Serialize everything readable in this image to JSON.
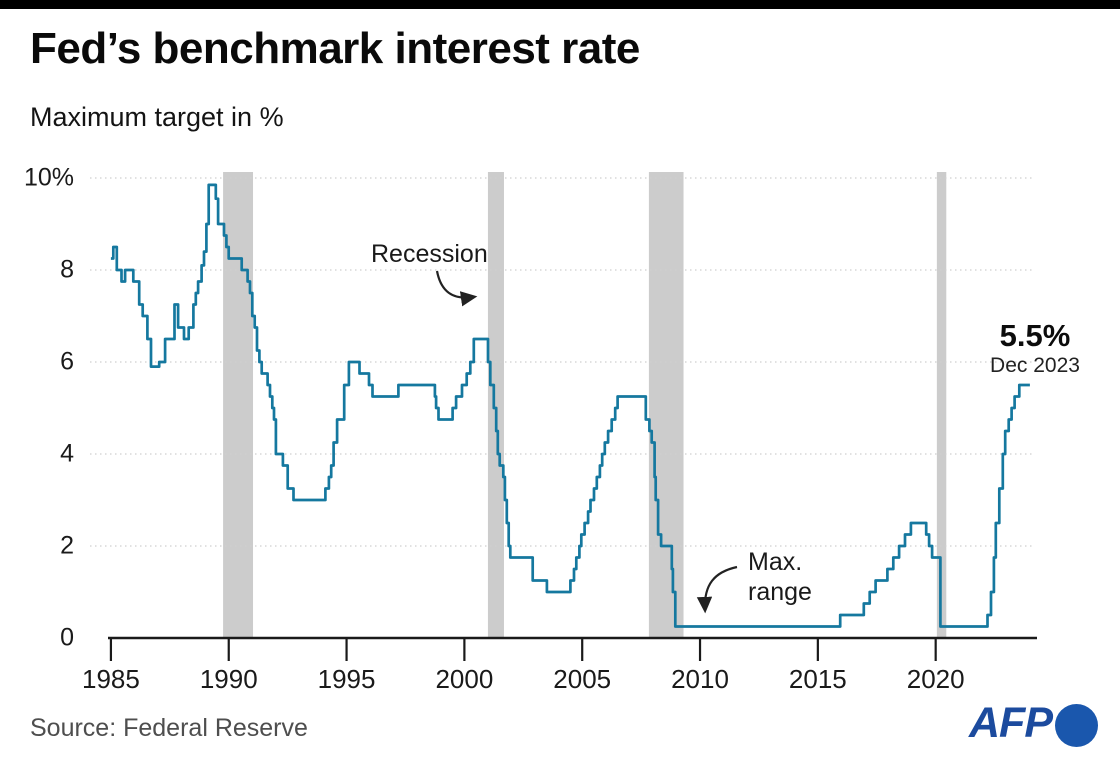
{
  "topbar_color": "#000000",
  "header": {
    "title": "Fed’s benchmark interest rate",
    "subtitle": "Maximum target in %"
  },
  "chart_data": {
    "type": "line",
    "step": true,
    "title": "Fed’s benchmark interest rate",
    "ylabel": "Maximum target in %",
    "xlabel": "",
    "x_domain": [
      1983.9,
      2024.3
    ],
    "y_domain": [
      0,
      10
    ],
    "grid": "dotted horizontal",
    "legend": "none",
    "line_color": "#15789f",
    "band_color": "#cccccc",
    "grid_color": "#cfcfcf",
    "axis_color": "#1a1a1a",
    "y_ticks": [
      {
        "value": 10,
        "label": "10%"
      },
      {
        "value": 8,
        "label": "8"
      },
      {
        "value": 6,
        "label": "6"
      },
      {
        "value": 4,
        "label": "4"
      },
      {
        "value": 2,
        "label": "2"
      },
      {
        "value": 0,
        "label": "0"
      }
    ],
    "x_ticks": [
      {
        "value": 1985,
        "label": "1985"
      },
      {
        "value": 1990,
        "label": "1990"
      },
      {
        "value": 1995,
        "label": "1995"
      },
      {
        "value": 2000,
        "label": "2000"
      },
      {
        "value": 2005,
        "label": "2005"
      },
      {
        "value": 2010,
        "label": "2010"
      },
      {
        "value": 2015,
        "label": "2015"
      },
      {
        "value": 2020,
        "label": "2020"
      }
    ],
    "recession_bands": [
      [
        1989.76,
        1991.03
      ],
      [
        2001.0,
        2001.68
      ],
      [
        2007.83,
        2009.3
      ],
      [
        2020.05,
        2020.45
      ]
    ],
    "series": [
      {
        "name": "Fed benchmark rate (maximum target, %)",
        "end_year": 2024.0,
        "points": [
          [
            1985.0,
            8.25
          ],
          [
            1985.1,
            8.5
          ],
          [
            1985.25,
            8.0
          ],
          [
            1985.45,
            7.75
          ],
          [
            1985.6,
            8.0
          ],
          [
            1985.95,
            7.75
          ],
          [
            1986.2,
            7.25
          ],
          [
            1986.35,
            7.0
          ],
          [
            1986.55,
            6.5
          ],
          [
            1986.7,
            5.9
          ],
          [
            1987.05,
            6.0
          ],
          [
            1987.3,
            6.5
          ],
          [
            1987.7,
            7.25
          ],
          [
            1987.85,
            6.75
          ],
          [
            1988.1,
            6.5
          ],
          [
            1988.3,
            6.75
          ],
          [
            1988.5,
            7.25
          ],
          [
            1988.6,
            7.5
          ],
          [
            1988.7,
            7.75
          ],
          [
            1988.85,
            8.1
          ],
          [
            1988.95,
            8.4
          ],
          [
            1989.05,
            9.0
          ],
          [
            1989.15,
            9.85
          ],
          [
            1989.45,
            9.55
          ],
          [
            1989.55,
            9.0
          ],
          [
            1989.8,
            8.75
          ],
          [
            1989.9,
            8.5
          ],
          [
            1990.0,
            8.25
          ],
          [
            1990.55,
            8.0
          ],
          [
            1990.8,
            7.75
          ],
          [
            1990.9,
            7.5
          ],
          [
            1991.0,
            7.0
          ],
          [
            1991.1,
            6.75
          ],
          [
            1991.2,
            6.25
          ],
          [
            1991.3,
            6.0
          ],
          [
            1991.4,
            5.75
          ],
          [
            1991.65,
            5.5
          ],
          [
            1991.75,
            5.25
          ],
          [
            1991.85,
            5.0
          ],
          [
            1991.92,
            4.75
          ],
          [
            1992.0,
            4.0
          ],
          [
            1992.3,
            3.75
          ],
          [
            1992.5,
            3.25
          ],
          [
            1992.75,
            3.0
          ],
          [
            1994.1,
            3.25
          ],
          [
            1994.25,
            3.5
          ],
          [
            1994.35,
            3.75
          ],
          [
            1994.45,
            4.25
          ],
          [
            1994.6,
            4.75
          ],
          [
            1994.9,
            5.5
          ],
          [
            1995.1,
            6.0
          ],
          [
            1995.55,
            5.75
          ],
          [
            1995.95,
            5.5
          ],
          [
            1996.1,
            5.25
          ],
          [
            1997.2,
            5.5
          ],
          [
            1998.75,
            5.25
          ],
          [
            1998.8,
            5.0
          ],
          [
            1998.9,
            4.75
          ],
          [
            1999.5,
            5.0
          ],
          [
            1999.65,
            5.25
          ],
          [
            1999.9,
            5.5
          ],
          [
            2000.1,
            5.75
          ],
          [
            2000.25,
            6.0
          ],
          [
            2000.4,
            6.5
          ],
          [
            2001.0,
            6.0
          ],
          [
            2001.1,
            5.5
          ],
          [
            2001.25,
            5.0
          ],
          [
            2001.35,
            4.5
          ],
          [
            2001.42,
            4.0
          ],
          [
            2001.5,
            3.75
          ],
          [
            2001.65,
            3.5
          ],
          [
            2001.72,
            3.0
          ],
          [
            2001.8,
            2.5
          ],
          [
            2001.88,
            2.0
          ],
          [
            2001.95,
            1.75
          ],
          [
            2002.9,
            1.25
          ],
          [
            2003.5,
            1.0
          ],
          [
            2004.5,
            1.25
          ],
          [
            2004.65,
            1.5
          ],
          [
            2004.75,
            1.75
          ],
          [
            2004.88,
            2.0
          ],
          [
            2004.96,
            2.25
          ],
          [
            2005.1,
            2.5
          ],
          [
            2005.25,
            2.75
          ],
          [
            2005.35,
            3.0
          ],
          [
            2005.5,
            3.25
          ],
          [
            2005.62,
            3.5
          ],
          [
            2005.75,
            3.75
          ],
          [
            2005.85,
            4.0
          ],
          [
            2005.96,
            4.25
          ],
          [
            2006.1,
            4.5
          ],
          [
            2006.25,
            4.75
          ],
          [
            2006.4,
            5.0
          ],
          [
            2006.5,
            5.25
          ],
          [
            2007.7,
            4.75
          ],
          [
            2007.85,
            4.5
          ],
          [
            2007.95,
            4.25
          ],
          [
            2008.07,
            3.5
          ],
          [
            2008.12,
            3.0
          ],
          [
            2008.22,
            2.25
          ],
          [
            2008.35,
            2.0
          ],
          [
            2008.8,
            1.5
          ],
          [
            2008.85,
            1.0
          ],
          [
            2008.95,
            0.25
          ],
          [
            2015.95,
            0.5
          ],
          [
            2016.95,
            0.75
          ],
          [
            2017.2,
            1.0
          ],
          [
            2017.45,
            1.25
          ],
          [
            2017.95,
            1.5
          ],
          [
            2018.2,
            1.75
          ],
          [
            2018.45,
            2.0
          ],
          [
            2018.7,
            2.25
          ],
          [
            2018.95,
            2.5
          ],
          [
            2019.6,
            2.25
          ],
          [
            2019.72,
            2.0
          ],
          [
            2019.85,
            1.75
          ],
          [
            2020.2,
            0.25
          ],
          [
            2022.2,
            0.5
          ],
          [
            2022.35,
            1.0
          ],
          [
            2022.47,
            1.75
          ],
          [
            2022.55,
            2.5
          ],
          [
            2022.7,
            3.25
          ],
          [
            2022.85,
            4.0
          ],
          [
            2022.95,
            4.5
          ],
          [
            2023.1,
            4.75
          ],
          [
            2023.22,
            5.0
          ],
          [
            2023.35,
            5.25
          ],
          [
            2023.55,
            5.5
          ]
        ]
      }
    ],
    "annotations": {
      "recession_label": "Recession",
      "max_range_line1": "Max.",
      "max_range_line2": "range",
      "end_value": "5.5%",
      "end_date": "Dec 2023"
    }
  },
  "footer": {
    "source": "Source: Federal Reserve",
    "logo_text": "AFP",
    "logo_text_color": "#1c4b9e",
    "logo_circle_color": "#1a57ad"
  }
}
